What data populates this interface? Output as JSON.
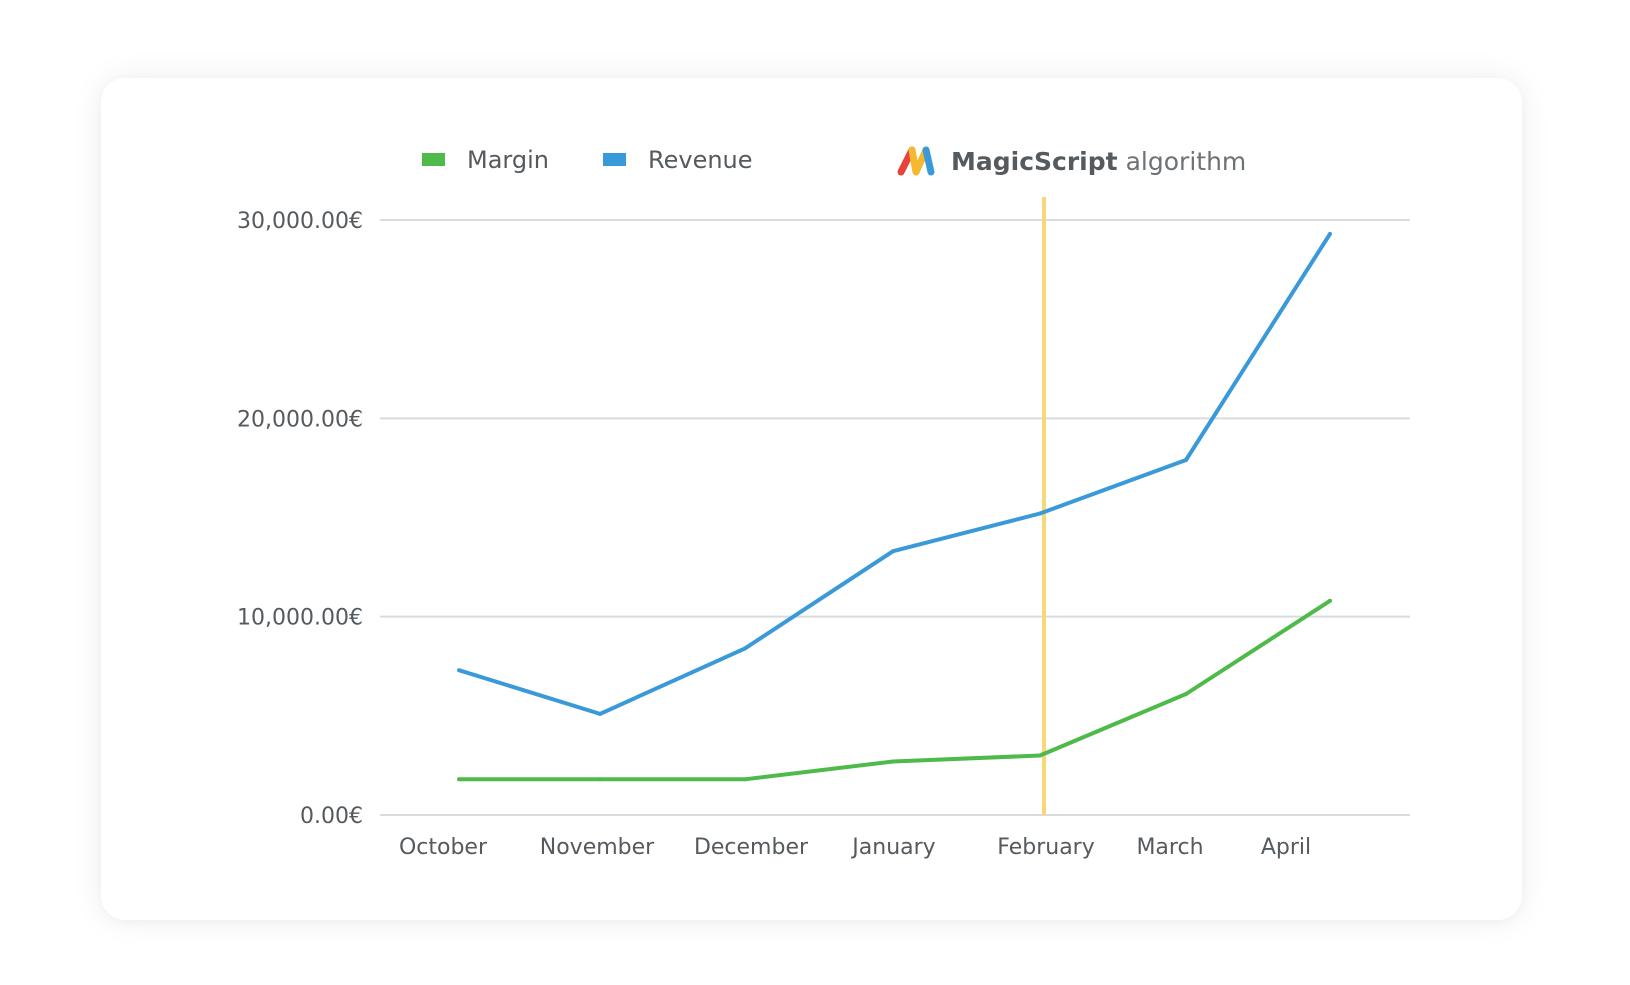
{
  "chart_data": {
    "type": "line",
    "categories": [
      "October",
      "November",
      "December",
      "January",
      "February",
      "March",
      "April"
    ],
    "series": [
      {
        "name": "Margin",
        "color": "#4dba4a",
        "values": [
          1800,
          1800,
          1800,
          2700,
          3000,
          6100,
          10800
        ]
      },
      {
        "name": "Revenue",
        "color": "#3a9ad9",
        "values": [
          7300,
          5100,
          8400,
          13300,
          15200,
          17900,
          29300
        ]
      }
    ],
    "ylim": [
      0,
      30000
    ],
    "yticks": [
      0,
      10000,
      20000,
      30000
    ],
    "ytick_labels": [
      "0.00€",
      "10,000.00€",
      "20,000.00€",
      "30,000.00€"
    ],
    "grid": true,
    "legend_position": "top-left",
    "marker": {
      "category": "February",
      "color": "#f8d77a"
    }
  },
  "brand": {
    "name": "MagicScript",
    "suffix": "algorithm",
    "logo_icon": "m-logo-icon",
    "logo_colors": [
      "#e8423a",
      "#f5b82e",
      "#3a9ad9"
    ]
  }
}
